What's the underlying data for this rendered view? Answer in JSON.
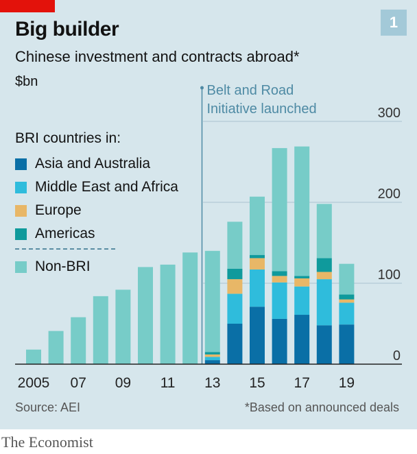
{
  "header": {
    "chart_number": "1",
    "title": "Big builder",
    "subtitle": "Chinese investment and contracts abroad*",
    "unit": "$bn"
  },
  "annotation": {
    "line1": "Belt and Road",
    "line2": "Initiative launched"
  },
  "legend": {
    "title": "BRI countries in:",
    "items": [
      {
        "label": "Asia and Australia",
        "color": "#0a6fa6"
      },
      {
        "label": "Middle East and Africa",
        "color": "#2fbcdc"
      },
      {
        "label": "Europe",
        "color": "#e8b767"
      },
      {
        "label": "Americas",
        "color": "#0f9a9c"
      }
    ],
    "non_bri": {
      "label": "Non-BRI",
      "color": "#77ccc8"
    }
  },
  "footer": {
    "source": "Source: AEI",
    "footnote": "*Based on announced deals",
    "brand": "The Economist"
  },
  "chart_data": {
    "type": "bar",
    "stacked": true,
    "x": [
      2005,
      2006,
      2007,
      2008,
      2009,
      2010,
      2011,
      2012,
      2013,
      2014,
      2015,
      2016,
      2017,
      2018,
      2019
    ],
    "x_tick_labels": [
      "2005",
      "07",
      "09",
      "11",
      "13",
      "15",
      "17",
      "19"
    ],
    "x_tick_years": [
      2005,
      2007,
      2009,
      2011,
      2013,
      2015,
      2017,
      2019
    ],
    "y_ticks": [
      0,
      100,
      200,
      300
    ],
    "ylim": [
      0,
      310
    ],
    "grid": true,
    "annotation_year": 2013,
    "series": [
      {
        "name": "Asia and Australia",
        "values": [
          0,
          0,
          0,
          0,
          0,
          0,
          0,
          0,
          5,
          50,
          71,
          56,
          61,
          48,
          49
        ]
      },
      {
        "name": "Middle East and Africa",
        "values": [
          0,
          0,
          0,
          0,
          0,
          0,
          0,
          0,
          4,
          37,
          46,
          45,
          35,
          57,
          27
        ]
      },
      {
        "name": "Europe",
        "values": [
          0,
          0,
          0,
          0,
          0,
          0,
          0,
          0,
          3,
          18,
          14,
          8,
          10,
          9,
          4
        ]
      },
      {
        "name": "Americas",
        "values": [
          0,
          0,
          0,
          0,
          0,
          0,
          0,
          0,
          3,
          13,
          4,
          6,
          3,
          17,
          6
        ]
      },
      {
        "name": "Non-BRI",
        "values": [
          18,
          41,
          58,
          84,
          92,
          120,
          123,
          138,
          125,
          58,
          72,
          152,
          160,
          67,
          38
        ]
      }
    ]
  }
}
